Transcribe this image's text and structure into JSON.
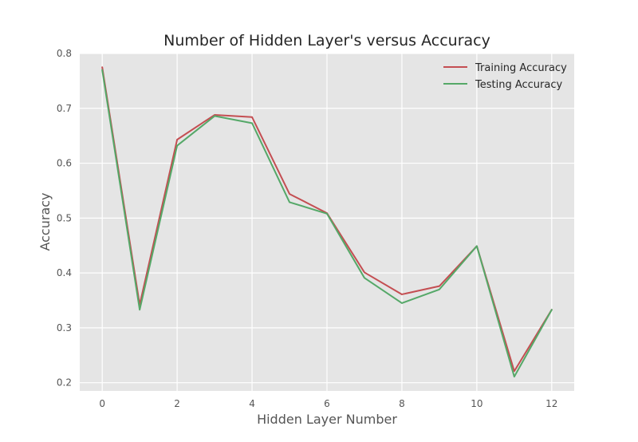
{
  "chart_data": {
    "type": "line",
    "title": "Number of Hidden Layer's versus Accuracy",
    "xlabel": "Hidden Layer Number",
    "ylabel": "Accuracy",
    "x": [
      0,
      1,
      2,
      3,
      4,
      5,
      6,
      7,
      8,
      9,
      10,
      11,
      12
    ],
    "xlim": [
      -0.6,
      12.6
    ],
    "ylim": [
      0.185,
      0.8
    ],
    "xticks": [
      0,
      2,
      4,
      6,
      8,
      10,
      12
    ],
    "yticks": [
      0.2,
      0.3,
      0.4,
      0.5,
      0.6,
      0.7,
      0.8
    ],
    "grid": true,
    "legend_position": "top-right",
    "series": [
      {
        "name": "Training Accuracy",
        "color": "#c44e52",
        "values": [
          0.775,
          0.342,
          0.643,
          0.688,
          0.684,
          0.544,
          0.509,
          0.401,
          0.361,
          0.376,
          0.449,
          0.221,
          0.333
        ]
      },
      {
        "name": "Testing Accuracy",
        "color": "#55a868",
        "values": [
          0.77,
          0.333,
          0.632,
          0.686,
          0.673,
          0.529,
          0.508,
          0.391,
          0.345,
          0.37,
          0.449,
          0.211,
          0.333
        ]
      }
    ],
    "colors": {
      "plot_background": "#e5e5e5",
      "grid": "#ffffff"
    }
  }
}
